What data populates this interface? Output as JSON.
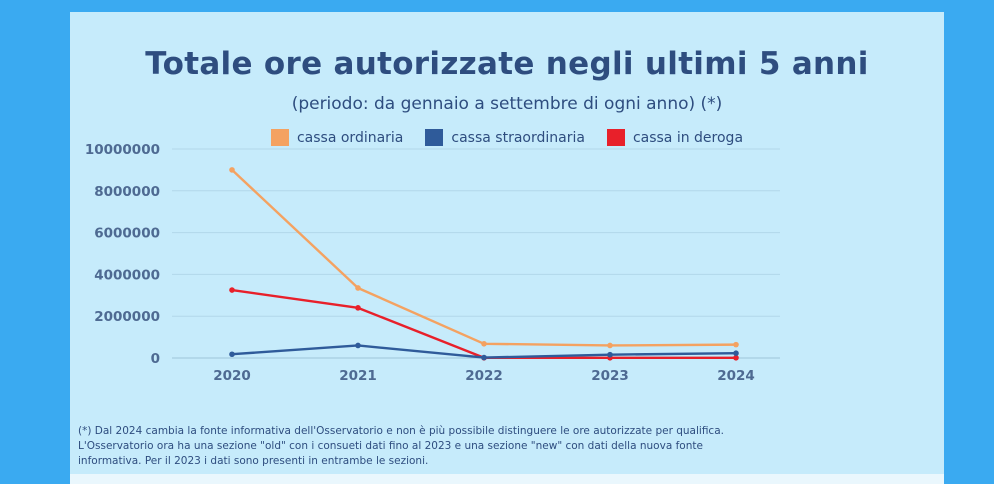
{
  "header": {
    "title": "Totale ore autorizzate negli ultimi 5 anni",
    "subtitle": "(periodo: da gennaio a settembre di ogni anno) (*)"
  },
  "footnote": [
    "(*) Dal 2024 cambia la fonte informativa dell'Osservatorio e non è più possibile distinguere le ore autorizzate per qualifica.",
    "L'Osservatorio ora ha una sezione \"old\" con i consueti dati fino al 2023 e una sezione \"new\" con dati della nuova fonte",
    "informativa. Per il 2023 i dati sono presenti in entrambe le sezioni."
  ],
  "chart_data": {
    "type": "line",
    "title": "Totale ore autorizzate negli ultimi 5 anni",
    "subtitle": "(periodo: da gennaio a settembre di ogni anno) (*)",
    "x": [
      "2020",
      "2021",
      "2022",
      "2023",
      "2024"
    ],
    "ylim": [
      0,
      10000000
    ],
    "yticks": [
      "0",
      "2000000",
      "4000000",
      "6000000",
      "8000000",
      "10000000"
    ],
    "grid": true,
    "legend_position": "top",
    "series": [
      {
        "name": "cassa ordinaria",
        "color": "#f4a261",
        "values": [
          9000000,
          3350000,
          680000,
          600000,
          640000
        ]
      },
      {
        "name": "cassa straordinaria",
        "color": "#2f5b9a",
        "values": [
          180000,
          600000,
          20000,
          160000,
          230000
        ]
      },
      {
        "name": "cassa in deroga",
        "color": "#e8202a",
        "values": [
          3250000,
          2400000,
          10000,
          10000,
          10000
        ]
      }
    ]
  }
}
